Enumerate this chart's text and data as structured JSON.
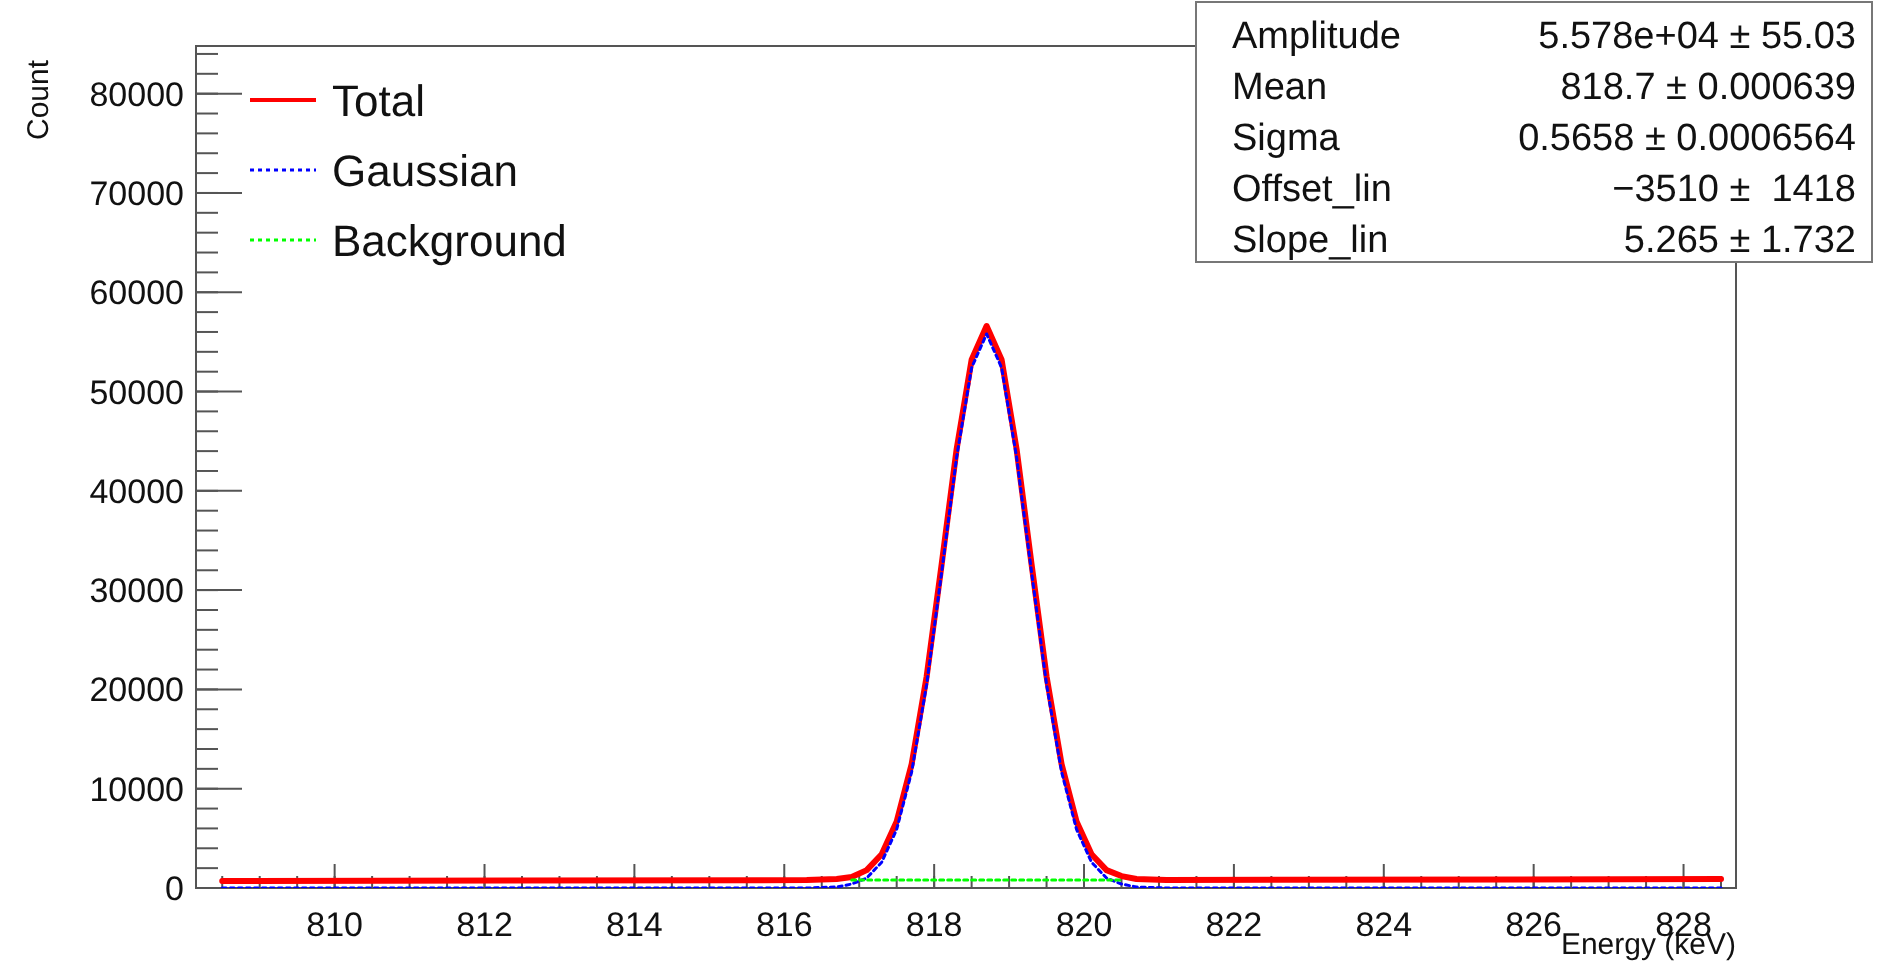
{
  "chart_data": {
    "type": "line",
    "xlabel": "Energy (keV)",
    "ylabel": "Count",
    "xlim": [
      808.15,
      828.7
    ],
    "xticks": [
      810,
      812,
      814,
      816,
      818,
      820,
      822,
      824,
      826,
      828
    ],
    "ylim": [
      0,
      84800
    ],
    "yticks": [
      0,
      10000,
      20000,
      30000,
      40000,
      50000,
      60000,
      70000,
      80000
    ],
    "grid": false,
    "legend": "top left",
    "series": [
      {
        "name": "Total",
        "color": "#ff0000",
        "line_style": "solid",
        "x": [
          808.5,
          816.3,
          816.7,
          816.9,
          817.1,
          817.3,
          817.5,
          817.7,
          817.9,
          818.1,
          818.3,
          818.5,
          818.7,
          818.9,
          819.1,
          819.3,
          819.5,
          819.7,
          819.9,
          820.1,
          820.3,
          820.5,
          820.7,
          821.1,
          828.5
        ],
        "values": [
          700,
          800,
          900,
          1100,
          1800,
          3400,
          6700,
          12500,
          21300,
          32600,
          44200,
          53200,
          56600,
          53200,
          44200,
          32600,
          21300,
          12500,
          6700,
          3400,
          1800,
          1200,
          900,
          800,
          900
        ]
      },
      {
        "name": "Gaussian",
        "color": "#0000ff",
        "line_style": "dotted",
        "x": [
          808.5,
          816.3,
          816.7,
          816.9,
          817.1,
          817.3,
          817.5,
          817.7,
          817.9,
          818.1,
          818.3,
          818.5,
          818.7,
          818.9,
          819.1,
          819.3,
          819.5,
          819.7,
          819.9,
          820.1,
          820.3,
          820.5,
          820.7,
          821.1,
          828.5
        ],
        "values": [
          0,
          0,
          100,
          400,
          1000,
          2600,
          5900,
          11700,
          20500,
          31800,
          43400,
          52400,
          55800,
          52400,
          43400,
          31800,
          20500,
          11700,
          5900,
          2600,
          1000,
          400,
          100,
          0,
          0
        ]
      },
      {
        "name": "Background",
        "color": "#00ff00",
        "line_style": "dotted",
        "x": [
          816.9,
          817.5,
          818.1,
          818.7,
          819.3,
          819.9,
          820.5
        ],
        "values": [
          800,
          800,
          800,
          800,
          800,
          800,
          800
        ]
      }
    ],
    "annotations": [
      "Amplitude",
      "5.578e+04 ± 55.03",
      "Mean",
      "818.7 ± 0.000639",
      "Sigma",
      "0.5658 ± 0.0006564",
      "Offset_lin",
      "−3510 ±  1418",
      "Slope_lin",
      "5.265 ± 1.732"
    ]
  }
}
